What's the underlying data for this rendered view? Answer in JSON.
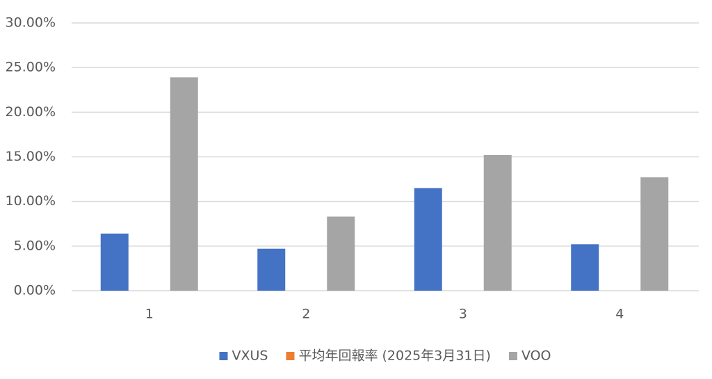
{
  "chart_data": {
    "type": "bar",
    "categories": [
      "1",
      "2",
      "3",
      "4"
    ],
    "series": [
      {
        "name": "VXUS",
        "color": "#4472c4",
        "values": [
          6.4,
          4.7,
          11.5,
          5.2
        ]
      },
      {
        "name": "平均年回報率 (2025年3月31日)",
        "color": "#ed7d31",
        "values": [
          null,
          null,
          null,
          null
        ]
      },
      {
        "name": "VOO",
        "color": "#a5a5a5",
        "values": [
          23.9,
          8.3,
          15.2,
          12.7
        ]
      }
    ],
    "ylim": [
      0,
      30
    ],
    "yticks": [
      {
        "value": 0,
        "label": "0.00%"
      },
      {
        "value": 5,
        "label": "5.00%"
      },
      {
        "value": 10,
        "label": "10.00%"
      },
      {
        "value": 15,
        "label": "15.00%"
      },
      {
        "value": 20,
        "label": "20.00%"
      },
      {
        "value": 25,
        "label": "25.00%"
      },
      {
        "value": 30,
        "label": "30.00%"
      }
    ],
    "grid": true,
    "legend": "bottom"
  }
}
